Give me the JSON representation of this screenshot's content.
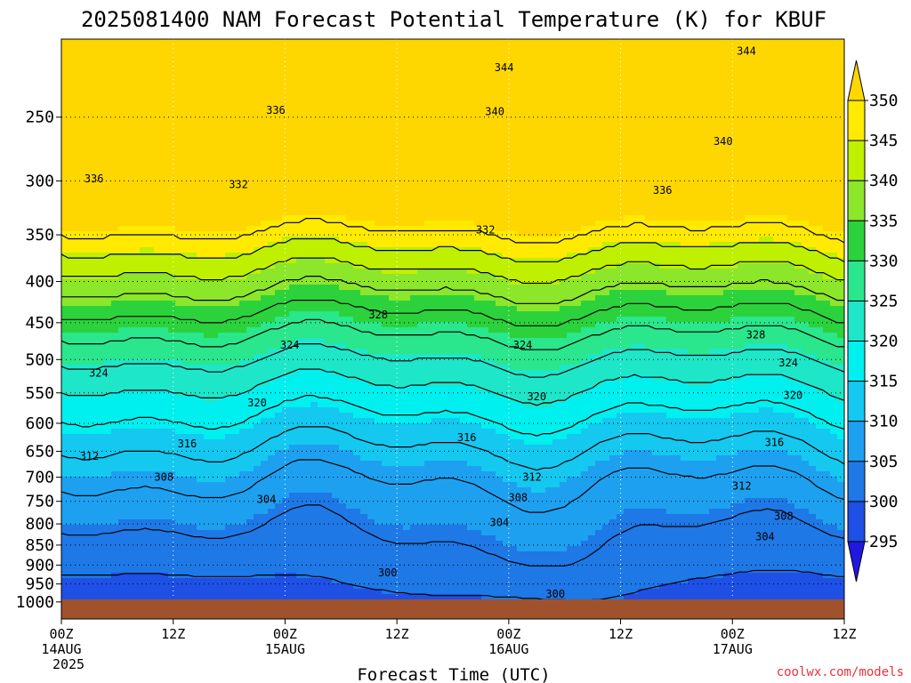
{
  "title": "2025081400 NAM Forecast Potential Temperature (K) for KBUF",
  "xlabel": "Forecast Time (UTC)",
  "watermark": "coolwx.com/models",
  "chart_data": {
    "type": "contour",
    "variable": "Potential Temperature",
    "units": "K",
    "x_range_hours": [
      0,
      84
    ],
    "x_ticks": [
      {
        "hour": 0,
        "lines": [
          "00Z",
          "14AUG",
          "2025"
        ]
      },
      {
        "hour": 12,
        "lines": [
          "12Z"
        ]
      },
      {
        "hour": 24,
        "lines": [
          "00Z",
          "15AUG"
        ]
      },
      {
        "hour": 36,
        "lines": [
          "12Z"
        ]
      },
      {
        "hour": 48,
        "lines": [
          "00Z",
          "16AUG"
        ]
      },
      {
        "hour": 60,
        "lines": [
          "12Z"
        ]
      },
      {
        "hour": 72,
        "lines": [
          "00Z",
          "17AUG"
        ]
      },
      {
        "hour": 84,
        "lines": [
          "12Z"
        ]
      }
    ],
    "y_axis": "pressure (log)",
    "y_range": [
      1050,
      200
    ],
    "y_ticks": [
      250,
      300,
      350,
      400,
      450,
      500,
      550,
      600,
      650,
      700,
      750,
      800,
      850,
      900,
      950,
      1000
    ],
    "colorbar": {
      "levels": [
        295,
        300,
        305,
        310,
        315,
        320,
        325,
        330,
        335,
        340,
        345,
        350
      ],
      "colors": [
        "#2018e0",
        "#1e50e6",
        "#1e78e6",
        "#1ea0f0",
        "#14c8f0",
        "#00f0f0",
        "#1ee6c8",
        "#2ae68c",
        "#2cd23c",
        "#8ce62a",
        "#bef000",
        "#ffea00",
        "#ffd700"
      ]
    },
    "contour_labels": [
      {
        "value": 344,
        "x_hour": 47.5,
        "p": 217
      },
      {
        "value": 344,
        "x_hour": 73.5,
        "p": 207
      },
      {
        "value": 340,
        "x_hour": 46.5,
        "p": 246
      },
      {
        "value": 340,
        "x_hour": 71.0,
        "p": 268
      },
      {
        "value": 336,
        "x_hour": 23.0,
        "p": 245
      },
      {
        "value": 336,
        "x_hour": 3.5,
        "p": 298
      },
      {
        "value": 336,
        "x_hour": 64.5,
        "p": 308
      },
      {
        "value": 332,
        "x_hour": 19.0,
        "p": 303
      },
      {
        "value": 332,
        "x_hour": 45.5,
        "p": 345
      },
      {
        "value": 328,
        "x_hour": 34.0,
        "p": 440
      },
      {
        "value": 328,
        "x_hour": 74.5,
        "p": 466
      },
      {
        "value": 324,
        "x_hour": 24.5,
        "p": 480
      },
      {
        "value": 324,
        "x_hour": 49.5,
        "p": 480
      },
      {
        "value": 324,
        "x_hour": 78.0,
        "p": 505
      },
      {
        "value": 324,
        "x_hour": 4.0,
        "p": 520
      },
      {
        "value": 320,
        "x_hour": 21.0,
        "p": 566
      },
      {
        "value": 320,
        "x_hour": 51.0,
        "p": 556
      },
      {
        "value": 320,
        "x_hour": 78.5,
        "p": 554
      },
      {
        "value": 316,
        "x_hour": 13.5,
        "p": 636
      },
      {
        "value": 316,
        "x_hour": 43.5,
        "p": 625
      },
      {
        "value": 316,
        "x_hour": 76.5,
        "p": 634
      },
      {
        "value": 312,
        "x_hour": 3.0,
        "p": 659
      },
      {
        "value": 312,
        "x_hour": 50.5,
        "p": 700
      },
      {
        "value": 312,
        "x_hour": 73.0,
        "p": 718
      },
      {
        "value": 308,
        "x_hour": 11.0,
        "p": 700
      },
      {
        "value": 308,
        "x_hour": 49.0,
        "p": 742
      },
      {
        "value": 308,
        "x_hour": 77.5,
        "p": 783
      },
      {
        "value": 304,
        "x_hour": 22.0,
        "p": 746
      },
      {
        "value": 304,
        "x_hour": 47.0,
        "p": 797
      },
      {
        "value": 304,
        "x_hour": 75.5,
        "p": 830
      },
      {
        "value": 300,
        "x_hour": 35.0,
        "p": 920
      },
      {
        "value": 300,
        "x_hour": 53.0,
        "p": 978
      }
    ],
    "surface_band_color": "#a0522d"
  }
}
